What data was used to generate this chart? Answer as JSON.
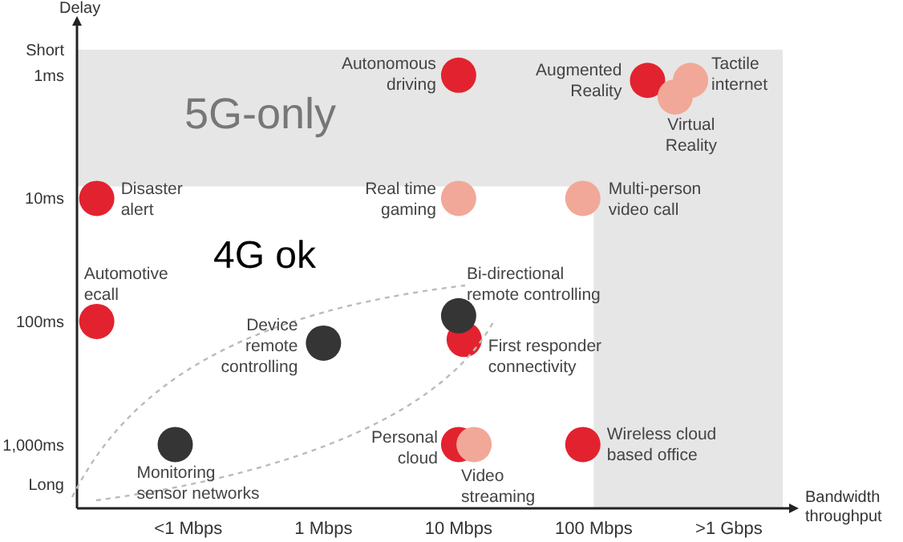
{
  "chart_data": {
    "type": "scatter",
    "xlabel": "Bandwidth throughput",
    "ylabel": "Delay",
    "log": "xy",
    "marker": "circle",
    "xlim": [
      0.015,
      2500
    ],
    "ylim": [
      3300,
      0.62
    ],
    "xticks": [
      {
        "value": 0.1,
        "label": "<1 Mbps"
      },
      {
        "value": 1,
        "label": "1 Mbps"
      },
      {
        "value": 10,
        "label": "10 Mbps"
      },
      {
        "value": 100,
        "label": "100 Mbps"
      },
      {
        "value": 1000,
        "label": ">1 Gbps"
      }
    ],
    "yticks": [
      {
        "value": 0.62,
        "label": "Short"
      },
      {
        "value": 1,
        "label": "1ms"
      },
      {
        "value": 10,
        "label": "10ms"
      },
      {
        "value": 100,
        "label": "100ms"
      },
      {
        "value": 1000,
        "label": "1,000ms"
      },
      {
        "value": 2100,
        "label": "Long"
      }
    ],
    "series": [
      {
        "color": "#e3222f",
        "x": [
          10,
          250,
          0.021,
          0.021,
          11,
          10,
          83
        ],
        "values": [
          1,
          1.1,
          10,
          100,
          140,
          1000,
          1000
        ]
      },
      {
        "color": "#f1a898",
        "x": [
          520,
          400,
          10,
          83,
          13
        ],
        "values": [
          1.1,
          1.5,
          10,
          10,
          1000
        ]
      },
      {
        "color": "#353535",
        "x": [
          1,
          10,
          0.08
        ],
        "values": [
          150,
          90,
          1000
        ]
      }
    ],
    "bands": [
      {
        "axis": "y",
        "from": 0.62,
        "to": 8,
        "label": "5G-only",
        "color": "#e6e6e6"
      },
      {
        "axis": "x",
        "from": 100,
        "to": 2500,
        "color": "#e6e6e6"
      }
    ],
    "annotations": [
      "4G ok",
      {
        "text": "Autonomous driving",
        "x": 10,
        "y": 1
      },
      {
        "text": "Augmented Reality",
        "x": 250,
        "y": 1.1
      },
      {
        "text": "Tactile internet",
        "x": 520,
        "y": 1.1
      },
      {
        "text": "Virtual Reality",
        "x": 400,
        "y": 1.5
      },
      {
        "text": "Disaster alert",
        "x": 0.021,
        "y": 10
      },
      {
        "text": "Real time gaming",
        "x": 10,
        "y": 10
      },
      {
        "text": "Multi-person video call",
        "x": 83,
        "y": 10
      },
      {
        "text": "Automotive ecall",
        "x": 0.021,
        "y": 100
      },
      {
        "text": "Device remote controlling",
        "x": 1,
        "y": 150
      },
      {
        "text": "Bi-directional remote controlling",
        "x": 10,
        "y": 90
      },
      {
        "text": "First responder connectivity",
        "x": 11,
        "y": 140
      },
      {
        "text": "Monitoring sensor networks",
        "x": 0.08,
        "y": 1000
      },
      {
        "text": "Personal cloud",
        "x": 10,
        "y": 1000
      },
      {
        "text": "Video streaming",
        "x": 13,
        "y": 1000
      },
      {
        "text": "Wireless cloud based office",
        "x": 83,
        "y": 1000
      }
    ]
  }
}
